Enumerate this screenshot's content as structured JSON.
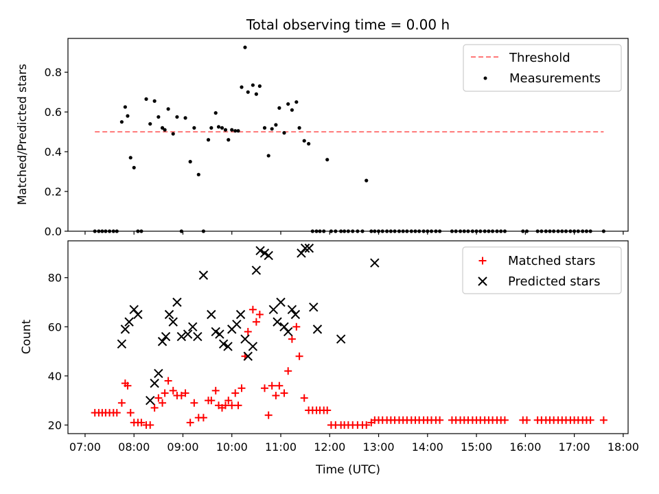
{
  "title": "Total observing time = 0.00 h",
  "x_ticks": [
    "07:00",
    "08:00",
    "09:00",
    "10:00",
    "11:00",
    "12:00",
    "13:00",
    "14:00",
    "15:00",
    "16:00",
    "17:00",
    "18:00"
  ],
  "x_tick_hours": [
    7,
    8,
    9,
    10,
    11,
    12,
    13,
    14,
    15,
    16,
    17,
    18
  ],
  "xlabel": "Time (UTC)",
  "colors": {
    "threshold": "#ff7777",
    "measurements": "#000000",
    "matched": "#ff0000",
    "predicted": "#000000"
  },
  "chart_data": [
    {
      "type": "scatter",
      "ylabel": "Matched/Predicted stars",
      "xlim": [
        6.65,
        18.1
      ],
      "ylim": [
        0,
        0.97
      ],
      "y_ticks": [
        "0.0",
        "0.2",
        "0.4",
        "0.6",
        "0.8"
      ],
      "y_tick_values": [
        0.0,
        0.2,
        0.4,
        0.6,
        0.8
      ],
      "legend_position": "top-right",
      "threshold": {
        "name": "Threshold",
        "value": 0.5,
        "x_range": [
          7.2,
          17.6
        ]
      },
      "series": [
        {
          "name": "Measurements",
          "marker": "dot",
          "x": [
            7.2,
            7.28,
            7.35,
            7.42,
            7.5,
            7.58,
            7.65,
            7.75,
            7.82,
            7.87,
            7.93,
            8.0,
            8.08,
            8.15,
            8.25,
            8.33,
            8.42,
            8.5,
            8.58,
            8.63,
            8.7,
            8.8,
            8.88,
            8.97,
            9.05,
            9.15,
            9.23,
            9.32,
            9.42,
            9.52,
            9.58,
            9.67,
            9.73,
            9.8,
            9.87,
            9.93,
            10.0,
            10.07,
            10.13,
            10.2,
            10.27,
            10.33,
            10.43,
            10.5,
            10.57,
            10.67,
            10.75,
            10.82,
            10.9,
            10.97,
            11.07,
            11.15,
            11.23,
            11.32,
            11.38,
            11.48,
            11.57,
            11.65,
            11.73,
            11.8,
            11.88,
            11.95,
            12.03,
            12.12,
            12.23,
            12.3,
            12.38,
            12.47,
            12.57,
            12.67,
            12.75,
            12.85,
            12.92,
            13.0,
            13.08,
            13.17,
            13.25,
            13.33,
            13.42,
            13.5,
            13.58,
            13.67,
            13.75,
            13.83,
            13.92,
            14.0,
            14.08,
            14.17,
            14.25,
            14.5,
            14.58,
            14.67,
            14.75,
            14.83,
            14.92,
            15.0,
            15.08,
            15.17,
            15.25,
            15.33,
            15.42,
            15.5,
            15.58,
            15.95,
            16.03,
            16.25,
            16.33,
            16.42,
            16.5,
            16.58,
            16.67,
            16.75,
            16.83,
            16.92,
            17.0,
            17.08,
            17.17,
            17.25,
            17.33,
            17.6
          ],
          "y": [
            0,
            0,
            0,
            0,
            0,
            0,
            0,
            0.55,
            0.625,
            0.58,
            0.37,
            0.32,
            0,
            0,
            0.665,
            0.54,
            0.655,
            0.575,
            0.52,
            0.51,
            0.615,
            0.49,
            0.575,
            0,
            0.57,
            0.35,
            0.52,
            0.285,
            0,
            0.46,
            0.52,
            0.595,
            0.525,
            0.52,
            0.51,
            0.46,
            0.51,
            0.505,
            0.505,
            0.725,
            0.925,
            0.7,
            0.735,
            0.69,
            0.73,
            0.52,
            0.38,
            0.515,
            0.535,
            0.62,
            0.495,
            0.64,
            0.61,
            0.65,
            0.52,
            0.455,
            0.44,
            0,
            0,
            0,
            0,
            0.36,
            0,
            0,
            0,
            0,
            0,
            0,
            0,
            0,
            0.255,
            0,
            0,
            0,
            0,
            0,
            0,
            0,
            0,
            0,
            0,
            0,
            0,
            0,
            0,
            0,
            0,
            0,
            0,
            0,
            0,
            0,
            0,
            0,
            0,
            0,
            0,
            0,
            0,
            0,
            0,
            0,
            0,
            0,
            0,
            0,
            0,
            0,
            0,
            0,
            0,
            0,
            0,
            0,
            0,
            0,
            0,
            0,
            0,
            0
          ]
        }
      ]
    },
    {
      "type": "scatter",
      "ylabel": "Count",
      "xlim": [
        6.65,
        18.1
      ],
      "ylim": [
        16.5,
        95
      ],
      "y_ticks": [
        "20",
        "40",
        "60",
        "80"
      ],
      "y_tick_values": [
        20,
        40,
        60,
        80
      ],
      "legend_position": "top-right",
      "series": [
        {
          "name": "Matched stars",
          "marker": "plus",
          "x": [
            7.2,
            7.28,
            7.35,
            7.42,
            7.5,
            7.58,
            7.65,
            7.75,
            7.82,
            7.87,
            7.93,
            8.0,
            8.08,
            8.15,
            8.25,
            8.33,
            8.42,
            8.5,
            8.58,
            8.63,
            8.7,
            8.8,
            8.88,
            8.97,
            9.05,
            9.15,
            9.23,
            9.32,
            9.42,
            9.52,
            9.58,
            9.67,
            9.73,
            9.8,
            9.87,
            9.93,
            10.0,
            10.07,
            10.13,
            10.2,
            10.27,
            10.33,
            10.43,
            10.5,
            10.57,
            10.67,
            10.75,
            10.82,
            10.9,
            10.97,
            11.07,
            11.15,
            11.23,
            11.32,
            11.38,
            11.48,
            11.57,
            11.65,
            11.73,
            11.8,
            11.88,
            11.95,
            12.03,
            12.12,
            12.23,
            12.3,
            12.38,
            12.47,
            12.57,
            12.67,
            12.75,
            12.85,
            12.92,
            13.0,
            13.08,
            13.17,
            13.25,
            13.33,
            13.42,
            13.5,
            13.58,
            13.67,
            13.75,
            13.83,
            13.92,
            14.0,
            14.08,
            14.17,
            14.25,
            14.5,
            14.58,
            14.67,
            14.75,
            14.83,
            14.92,
            15.0,
            15.08,
            15.17,
            15.25,
            15.33,
            15.42,
            15.5,
            15.58,
            15.95,
            16.03,
            16.25,
            16.33,
            16.42,
            16.5,
            16.58,
            16.67,
            16.75,
            16.83,
            16.92,
            17.0,
            17.08,
            17.17,
            17.25,
            17.33,
            17.6
          ],
          "y": [
            25,
            25,
            25,
            25,
            25,
            25,
            25,
            29,
            37,
            36,
            25,
            21,
            21,
            21,
            20,
            20,
            27,
            31,
            29,
            33,
            38,
            34,
            32,
            32,
            33,
            21,
            29,
            23,
            23,
            30,
            30,
            34,
            28,
            27,
            28,
            30,
            28,
            33,
            28,
            35,
            48,
            58,
            67,
            62,
            65,
            35,
            24,
            36,
            32,
            36,
            33,
            42,
            55,
            60,
            48,
            31,
            26,
            26,
            26,
            26,
            26,
            26,
            20,
            20,
            20,
            20,
            20,
            20,
            20,
            20,
            20,
            21,
            22,
            22,
            22,
            22,
            22,
            22,
            22,
            22,
            22,
            22,
            22,
            22,
            22,
            22,
            22,
            22,
            22,
            22,
            22,
            22,
            22,
            22,
            22,
            22,
            22,
            22,
            22,
            22,
            22,
            22,
            22,
            22,
            22,
            22,
            22,
            22,
            22,
            22,
            22,
            22,
            22,
            22,
            22,
            22,
            22,
            22,
            22,
            22
          ]
        },
        {
          "name": "Predicted stars",
          "marker": "x",
          "x": [
            7.75,
            7.82,
            7.9,
            8.0,
            8.08,
            8.33,
            8.42,
            8.5,
            8.58,
            8.65,
            8.72,
            8.8,
            8.88,
            8.97,
            9.1,
            9.2,
            9.3,
            9.42,
            9.58,
            9.67,
            9.75,
            9.83,
            9.92,
            10.0,
            10.1,
            10.18,
            10.27,
            10.33,
            10.43,
            10.5,
            10.58,
            10.67,
            10.75,
            10.85,
            10.93,
            11.0,
            11.07,
            11.15,
            11.23,
            11.3,
            11.42,
            11.5,
            11.58,
            11.67,
            11.75,
            12.23,
            12.92
          ],
          "y": [
            53,
            59,
            62,
            67,
            65,
            30,
            37,
            41,
            54,
            56,
            65,
            62,
            70,
            56,
            57,
            60,
            56,
            81,
            65,
            58,
            57,
            53,
            52,
            59,
            61,
            65,
            55,
            48,
            52,
            83,
            91,
            90,
            89,
            67,
            62,
            70,
            60,
            58,
            67,
            65,
            90,
            92,
            92,
            68,
            59,
            55,
            86
          ]
        }
      ]
    }
  ]
}
